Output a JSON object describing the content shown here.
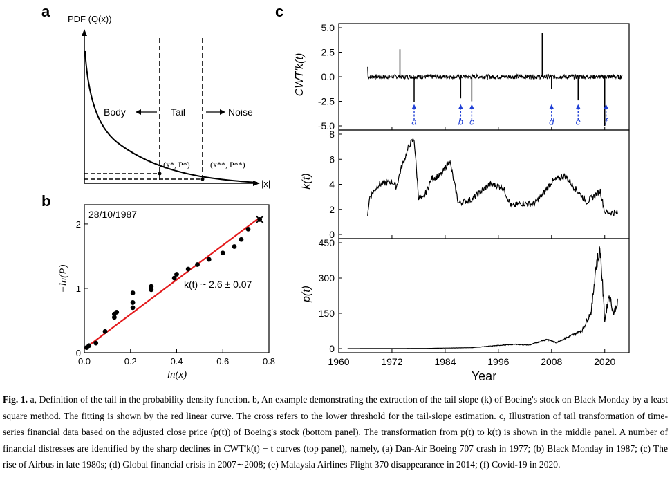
{
  "panel_labels": [
    "a",
    "b",
    "c"
  ],
  "panel_a": {
    "y_axis_label": "PDF (Q(x))",
    "x_axis_label": "|x|",
    "regions": [
      "Body",
      "Tail",
      "Noise"
    ],
    "points": [
      "(x*, P*)",
      "(x**, P**)"
    ]
  },
  "panel_c": {
    "xlabel": "Year",
    "x_ticks": [
      "1960",
      "1972",
      "1984",
      "1996",
      "2008",
      "2020"
    ],
    "events": [
      "a",
      "b",
      "c",
      "d",
      "e",
      "f"
    ]
  },
  "caption": {
    "label": "Fig. 1.",
    "text": " a, Definition of the tail in the probability density function. b, An example demonstrating the extraction of the tail slope (k) of Boeing's stock on Black Monday by a least square method. The fitting is shown by the red linear curve. The cross refers to the lower threshold for the tail-slope estimation. c, Illustration of tail transformation of time-series financial data based on the adjusted close price (p(t)) of Boeing's stock (bottom panel). The transformation from p(t) to k(t) is shown in the middle panel. A number of financial distresses are identified by the sharp declines in CWT'k(t) − t curves (top panel), namely, (a) Dan-Air Boeing 707 crash in 1977; (b) Black Monday in 1987; (c) The rise of Airbus in late 1980s; (d) Global financial crisis in 2007∼2008; (e) Malaysia Airlines Flight 370 disappearance in 2014; (f) Covid-19 in 2020."
  },
  "chart_data": [
    {
      "type": "scatter",
      "panel": "b",
      "title": "28/10/1987",
      "xlabel": "ln(x)",
      "ylabel": "−ln(P)",
      "xlim": [
        0,
        0.8
      ],
      "ylim": [
        0,
        2.3
      ],
      "x_ticks": [
        "0.0",
        "0.2",
        "0.4",
        "0.6",
        "0.8"
      ],
      "y_ticks": [
        "0",
        "1",
        "2"
      ],
      "annotation": "k(t) ~ 2.6 ± 0.07",
      "points": [
        [
          0.01,
          0.08
        ],
        [
          0.02,
          0.11
        ],
        [
          0.05,
          0.15
        ],
        [
          0.09,
          0.33
        ],
        [
          0.13,
          0.55
        ],
        [
          0.13,
          0.6
        ],
        [
          0.14,
          0.63
        ],
        [
          0.21,
          0.7
        ],
        [
          0.21,
          0.78
        ],
        [
          0.21,
          0.93
        ],
        [
          0.29,
          0.98
        ],
        [
          0.29,
          1.03
        ],
        [
          0.39,
          1.16
        ],
        [
          0.4,
          1.22
        ],
        [
          0.45,
          1.3
        ],
        [
          0.49,
          1.37
        ],
        [
          0.54,
          1.45
        ],
        [
          0.6,
          1.55
        ],
        [
          0.65,
          1.65
        ],
        [
          0.68,
          1.76
        ],
        [
          0.71,
          1.92
        ],
        [
          0.76,
          2.07
        ]
      ],
      "fit": [
        [
          0.0,
          0.06
        ],
        [
          0.76,
          2.1
        ]
      ],
      "threshold": [
        0.76,
        2.07
      ]
    },
    {
      "type": "line",
      "panel": "c-top",
      "ylabel": "CWT'k(t)",
      "ylim": [
        -5.0,
        5.0
      ],
      "y_ticks": [
        "5.0",
        "2.5",
        "0.0",
        "-2.5",
        "-5.0"
      ],
      "spikes": [
        [
          1973.8,
          2.8
        ],
        [
          2005.9,
          4.5
        ],
        [
          1977.0,
          -2.6
        ],
        [
          1987.5,
          -2.2
        ],
        [
          1990.0,
          -2.5
        ],
        [
          2008.0,
          -1.2
        ],
        [
          2014.0,
          -2.4
        ],
        [
          2020.0,
          -5.0
        ]
      ]
    },
    {
      "type": "line",
      "panel": "c-middle",
      "ylabel": "k(t)",
      "ylim": [
        0,
        8
      ],
      "y_ticks": [
        "8",
        "6",
        "4",
        "2",
        "0"
      ],
      "series": [
        [
          1966.5,
          1.7
        ],
        [
          1967,
          3.0
        ],
        [
          1969,
          4.0
        ],
        [
          1972,
          4.2
        ],
        [
          1973,
          3.8
        ],
        [
          1974,
          5.2
        ],
        [
          1976,
          7.2
        ],
        [
          1977,
          7.6
        ],
        [
          1978,
          3.0
        ],
        [
          1979,
          2.8
        ],
        [
          1981,
          4.5
        ],
        [
          1983,
          4.7
        ],
        [
          1985,
          5.9
        ],
        [
          1987,
          2.5
        ],
        [
          1990,
          2.8
        ],
        [
          1992,
          3.4
        ],
        [
          1994,
          4.0
        ],
        [
          1997,
          3.8
        ],
        [
          1999,
          2.2
        ],
        [
          2001,
          2.5
        ],
        [
          2004,
          2.4
        ],
        [
          2006,
          3.2
        ],
        [
          2008,
          4.2
        ],
        [
          2011,
          4.7
        ],
        [
          2013,
          3.8
        ],
        [
          2016,
          2.6
        ],
        [
          2019,
          3.5
        ],
        [
          2020,
          1.8
        ],
        [
          2023,
          1.7
        ]
      ]
    },
    {
      "type": "line",
      "panel": "c-bottom",
      "ylabel": "p(t)",
      "ylim": [
        0,
        450
      ],
      "y_ticks": [
        "450",
        "300",
        "150",
        "0"
      ],
      "series": [
        [
          1962,
          0
        ],
        [
          1980,
          1
        ],
        [
          1990,
          4
        ],
        [
          1997,
          15
        ],
        [
          2000,
          18
        ],
        [
          2003,
          15
        ],
        [
          2007,
          40
        ],
        [
          2009,
          25
        ],
        [
          2013,
          60
        ],
        [
          2015,
          80
        ],
        [
          2017,
          160
        ],
        [
          2018,
          350
        ],
        [
          2019,
          420
        ],
        [
          2020,
          120
        ],
        [
          2021,
          230
        ],
        [
          2022,
          150
        ],
        [
          2023,
          200
        ]
      ]
    }
  ]
}
